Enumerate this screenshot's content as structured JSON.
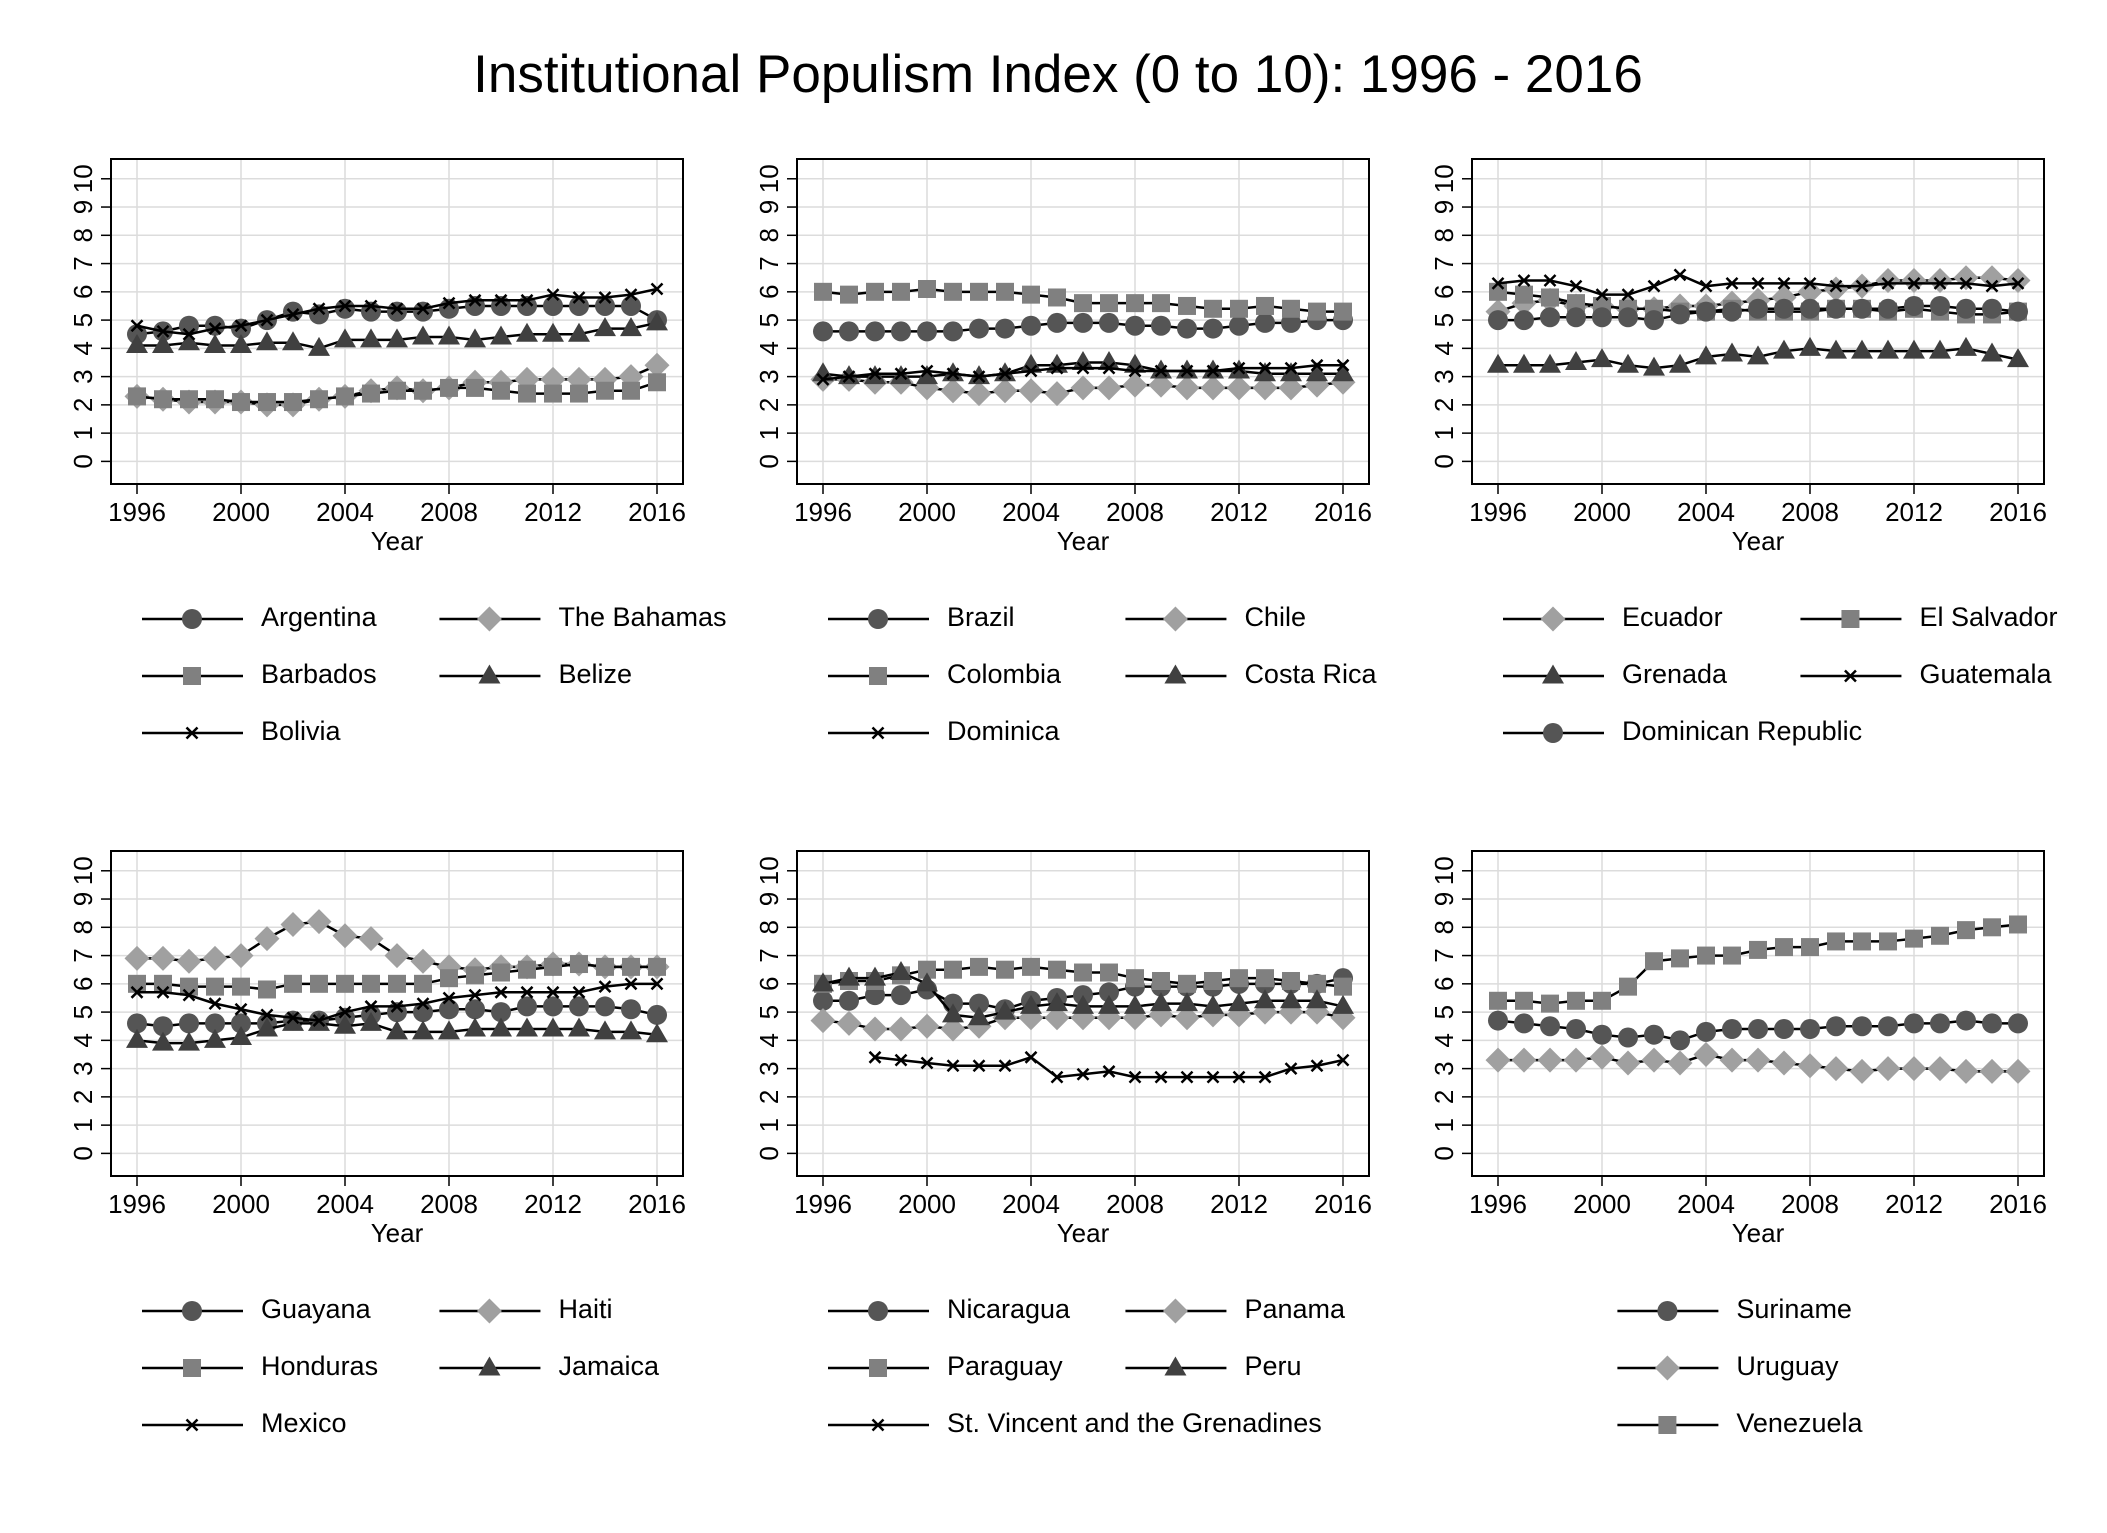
{
  "title": "Institutional Populism Index (0 to 10): 1996 - 2016",
  "chart_data": [
    {
      "type": "line",
      "x_label": "Year",
      "xlim": [
        1995,
        2017
      ],
      "ylim": [
        -0.8,
        10.7
      ],
      "xticks": [
        1996,
        2000,
        2004,
        2008,
        2012,
        2016
      ],
      "yticks": [
        0,
        1,
        2,
        3,
        4,
        5,
        6,
        7,
        8,
        9,
        10
      ],
      "grid": true,
      "line_color": "#000000",
      "legend_columns": 2,
      "x": [
        1996,
        1997,
        1998,
        1999,
        2000,
        2001,
        2002,
        2003,
        2004,
        2005,
        2006,
        2007,
        2008,
        2009,
        2010,
        2011,
        2012,
        2013,
        2014,
        2015,
        2016
      ],
      "series": [
        {
          "name": "Argentina",
          "color": "#555555",
          "marker": "circle",
          "values": [
            4.5,
            4.6,
            4.8,
            4.8,
            4.7,
            5.0,
            5.3,
            5.2,
            5.4,
            5.3,
            5.3,
            5.3,
            5.4,
            5.5,
            5.5,
            5.5,
            5.5,
            5.5,
            5.5,
            5.5,
            5.0
          ]
        },
        {
          "name": "The Bahamas",
          "color": "#a0a0a0",
          "marker": "diamond",
          "values": [
            2.3,
            2.2,
            2.1,
            2.1,
            2.1,
            2.0,
            2.0,
            2.2,
            2.3,
            2.5,
            2.6,
            2.5,
            2.6,
            2.8,
            2.8,
            2.9,
            2.9,
            2.9,
            2.9,
            3.0,
            3.4
          ]
        },
        {
          "name": "Barbados",
          "color": "#808080",
          "marker": "square",
          "values": [
            2.3,
            2.2,
            2.2,
            2.2,
            2.1,
            2.1,
            2.1,
            2.2,
            2.3,
            2.4,
            2.5,
            2.5,
            2.6,
            2.6,
            2.5,
            2.4,
            2.4,
            2.4,
            2.5,
            2.5,
            2.8
          ]
        },
        {
          "name": "Belize",
          "color": "#404040",
          "marker": "triangle",
          "values": [
            4.1,
            4.1,
            4.2,
            4.1,
            4.1,
            4.2,
            4.2,
            4.0,
            4.3,
            4.3,
            4.3,
            4.4,
            4.4,
            4.3,
            4.4,
            4.5,
            4.5,
            4.5,
            4.7,
            4.7,
            4.9
          ]
        },
        {
          "name": "Bolivia",
          "color": "#000000",
          "marker": "x",
          "values": [
            4.8,
            4.6,
            4.5,
            4.7,
            4.8,
            5.0,
            5.2,
            5.4,
            5.5,
            5.5,
            5.4,
            5.4,
            5.6,
            5.7,
            5.7,
            5.7,
            5.9,
            5.8,
            5.8,
            5.9,
            6.1
          ]
        }
      ]
    },
    {
      "type": "line",
      "x_label": "Year",
      "xlim": [
        1995,
        2017
      ],
      "ylim": [
        -0.8,
        10.7
      ],
      "xticks": [
        1996,
        2000,
        2004,
        2008,
        2012,
        2016
      ],
      "yticks": [
        0,
        1,
        2,
        3,
        4,
        5,
        6,
        7,
        8,
        9,
        10
      ],
      "grid": true,
      "line_color": "#000000",
      "legend_columns": 2,
      "x": [
        1996,
        1997,
        1998,
        1999,
        2000,
        2001,
        2002,
        2003,
        2004,
        2005,
        2006,
        2007,
        2008,
        2009,
        2010,
        2011,
        2012,
        2013,
        2014,
        2015,
        2016
      ],
      "series": [
        {
          "name": "Brazil",
          "color": "#555555",
          "marker": "circle",
          "values": [
            4.6,
            4.6,
            4.6,
            4.6,
            4.6,
            4.6,
            4.7,
            4.7,
            4.8,
            4.9,
            4.9,
            4.9,
            4.8,
            4.8,
            4.7,
            4.7,
            4.8,
            4.9,
            4.9,
            5.0,
            5.0
          ]
        },
        {
          "name": "Chile",
          "color": "#a0a0a0",
          "marker": "diamond",
          "values": [
            2.9,
            2.9,
            2.8,
            2.8,
            2.6,
            2.5,
            2.4,
            2.5,
            2.5,
            2.4,
            2.6,
            2.6,
            2.7,
            2.7,
            2.6,
            2.6,
            2.6,
            2.6,
            2.6,
            2.7,
            2.8
          ]
        },
        {
          "name": "Colombia",
          "color": "#808080",
          "marker": "square",
          "values": [
            6.0,
            5.9,
            6.0,
            6.0,
            6.1,
            6.0,
            6.0,
            6.0,
            5.9,
            5.8,
            5.6,
            5.6,
            5.6,
            5.6,
            5.5,
            5.4,
            5.4,
            5.5,
            5.4,
            5.3,
            5.3
          ]
        },
        {
          "name": "Costa Rica",
          "color": "#404040",
          "marker": "triangle",
          "values": [
            3.1,
            3.0,
            3.0,
            3.0,
            3.0,
            3.1,
            3.0,
            3.1,
            3.4,
            3.4,
            3.5,
            3.5,
            3.4,
            3.2,
            3.2,
            3.2,
            3.2,
            3.1,
            3.1,
            3.1,
            3.1
          ]
        },
        {
          "name": "Dominica",
          "color": "#000000",
          "marker": "x",
          "values": [
            2.9,
            3.0,
            3.1,
            3.1,
            3.2,
            3.1,
            3.0,
            3.1,
            3.2,
            3.3,
            3.3,
            3.3,
            3.2,
            3.2,
            3.2,
            3.2,
            3.3,
            3.3,
            3.3,
            3.4,
            3.4
          ]
        }
      ]
    },
    {
      "type": "line",
      "x_label": "Year",
      "xlim": [
        1995,
        2017
      ],
      "ylim": [
        -0.8,
        10.7
      ],
      "xticks": [
        1996,
        2000,
        2004,
        2008,
        2012,
        2016
      ],
      "yticks": [
        0,
        1,
        2,
        3,
        4,
        5,
        6,
        7,
        8,
        9,
        10
      ],
      "grid": true,
      "line_color": "#000000",
      "legend_columns": 2,
      "x": [
        1996,
        1997,
        1998,
        1999,
        2000,
        2001,
        2002,
        2003,
        2004,
        2005,
        2006,
        2007,
        2008,
        2009,
        2010,
        2011,
        2012,
        2013,
        2014,
        2015,
        2016
      ],
      "series": [
        {
          "name": "Ecuador",
          "color": "#a0a0a0",
          "marker": "diamond",
          "values": [
            5.3,
            5.6,
            5.7,
            5.5,
            5.5,
            5.4,
            5.4,
            5.5,
            5.5,
            5.6,
            5.7,
            5.8,
            6.0,
            6.1,
            6.2,
            6.4,
            6.4,
            6.4,
            6.5,
            6.5,
            6.4
          ]
        },
        {
          "name": "El Salvador",
          "color": "#808080",
          "marker": "square",
          "values": [
            6.0,
            5.9,
            5.8,
            5.6,
            5.5,
            5.4,
            5.4,
            5.3,
            5.3,
            5.4,
            5.3,
            5.3,
            5.3,
            5.4,
            5.4,
            5.3,
            5.4,
            5.3,
            5.2,
            5.2,
            5.3
          ]
        },
        {
          "name": "Grenada",
          "color": "#404040",
          "marker": "triangle",
          "values": [
            3.4,
            3.4,
            3.4,
            3.5,
            3.6,
            3.4,
            3.3,
            3.4,
            3.7,
            3.8,
            3.7,
            3.9,
            4.0,
            3.9,
            3.9,
            3.9,
            3.9,
            3.9,
            4.0,
            3.8,
            3.6
          ]
        },
        {
          "name": "Guatemala",
          "color": "#000000",
          "marker": "x",
          "values": [
            6.3,
            6.4,
            6.4,
            6.2,
            5.9,
            5.9,
            6.2,
            6.6,
            6.2,
            6.3,
            6.3,
            6.3,
            6.3,
            6.2,
            6.2,
            6.3,
            6.3,
            6.3,
            6.3,
            6.2,
            6.3
          ]
        },
        {
          "name": "Dominican Republic",
          "color": "#555555",
          "marker": "circle",
          "values": [
            5.0,
            5.0,
            5.1,
            5.1,
            5.1,
            5.1,
            5.0,
            5.2,
            5.3,
            5.3,
            5.4,
            5.4,
            5.4,
            5.4,
            5.4,
            5.4,
            5.5,
            5.5,
            5.4,
            5.4,
            5.3
          ]
        }
      ]
    },
    {
      "type": "line",
      "x_label": "Year",
      "xlim": [
        1995,
        2017
      ],
      "ylim": [
        -0.8,
        10.7
      ],
      "xticks": [
        1996,
        2000,
        2004,
        2008,
        2012,
        2016
      ],
      "yticks": [
        0,
        1,
        2,
        3,
        4,
        5,
        6,
        7,
        8,
        9,
        10
      ],
      "grid": true,
      "line_color": "#000000",
      "legend_columns": 2,
      "x": [
        1996,
        1997,
        1998,
        1999,
        2000,
        2001,
        2002,
        2003,
        2004,
        2005,
        2006,
        2007,
        2008,
        2009,
        2010,
        2011,
        2012,
        2013,
        2014,
        2015,
        2016
      ],
      "series": [
        {
          "name": "Guayana",
          "color": "#555555",
          "marker": "circle",
          "values": [
            4.6,
            4.5,
            4.6,
            4.6,
            4.6,
            4.6,
            4.7,
            4.7,
            4.8,
            4.9,
            5.0,
            5.0,
            5.1,
            5.1,
            5.0,
            5.2,
            5.2,
            5.2,
            5.2,
            5.1,
            4.9
          ]
        },
        {
          "name": "Haiti",
          "color": "#a0a0a0",
          "marker": "diamond",
          "values": [
            6.9,
            6.9,
            6.8,
            6.9,
            7.0,
            7.6,
            8.1,
            8.2,
            7.7,
            7.6,
            7.0,
            6.8,
            6.6,
            6.5,
            6.6,
            6.6,
            6.7,
            6.7,
            6.6,
            6.6,
            6.6
          ]
        },
        {
          "name": "Honduras",
          "color": "#808080",
          "marker": "square",
          "values": [
            6.0,
            6.0,
            5.9,
            5.9,
            5.9,
            5.8,
            6.0,
            6.0,
            6.0,
            6.0,
            6.0,
            6.0,
            6.2,
            6.3,
            6.4,
            6.5,
            6.6,
            6.7,
            6.6,
            6.6,
            6.6
          ]
        },
        {
          "name": "Jamaica",
          "color": "#404040",
          "marker": "triangle",
          "values": [
            4.0,
            3.9,
            3.9,
            4.0,
            4.1,
            4.4,
            4.6,
            4.6,
            4.5,
            4.6,
            4.3,
            4.3,
            4.3,
            4.4,
            4.4,
            4.4,
            4.4,
            4.4,
            4.3,
            4.3,
            4.2
          ]
        },
        {
          "name": "Mexico",
          "color": "#000000",
          "marker": "x",
          "values": [
            5.7,
            5.7,
            5.6,
            5.3,
            5.1,
            4.9,
            4.8,
            4.7,
            5.0,
            5.2,
            5.2,
            5.3,
            5.5,
            5.6,
            5.7,
            5.7,
            5.7,
            5.7,
            5.9,
            6.0,
            6.0
          ]
        }
      ]
    },
    {
      "type": "line",
      "x_label": "Year",
      "xlim": [
        1995,
        2017
      ],
      "ylim": [
        -0.8,
        10.7
      ],
      "xticks": [
        1996,
        2000,
        2004,
        2008,
        2012,
        2016
      ],
      "yticks": [
        0,
        1,
        2,
        3,
        4,
        5,
        6,
        7,
        8,
        9,
        10
      ],
      "grid": true,
      "line_color": "#000000",
      "legend_columns": 2,
      "x": [
        1996,
        1997,
        1998,
        1999,
        2000,
        2001,
        2002,
        2003,
        2004,
        2005,
        2006,
        2007,
        2008,
        2009,
        2010,
        2011,
        2012,
        2013,
        2014,
        2015,
        2016
      ],
      "series": [
        {
          "name": "Nicaragua",
          "color": "#555555",
          "marker": "circle",
          "values": [
            5.4,
            5.4,
            5.6,
            5.6,
            5.8,
            5.3,
            5.3,
            5.1,
            5.4,
            5.5,
            5.6,
            5.7,
            5.9,
            5.9,
            5.9,
            5.9,
            6.0,
            6.0,
            6.0,
            6.0,
            6.2
          ]
        },
        {
          "name": "Panama",
          "color": "#a0a0a0",
          "marker": "diamond",
          "values": [
            4.7,
            4.6,
            4.4,
            4.4,
            4.5,
            4.4,
            4.5,
            4.8,
            4.8,
            4.8,
            4.8,
            4.8,
            4.8,
            4.9,
            4.8,
            4.9,
            4.9,
            5.0,
            5.0,
            5.0,
            4.8
          ]
        },
        {
          "name": "Paraguay",
          "color": "#808080",
          "marker": "square",
          "values": [
            6.0,
            6.1,
            6.1,
            6.3,
            6.5,
            6.5,
            6.6,
            6.5,
            6.6,
            6.5,
            6.4,
            6.4,
            6.2,
            6.1,
            6.0,
            6.1,
            6.2,
            6.2,
            6.1,
            6.0,
            5.9
          ]
        },
        {
          "name": "Peru",
          "color": "#404040",
          "marker": "triangle",
          "values": [
            6.0,
            6.2,
            6.2,
            6.4,
            6.0,
            4.9,
            4.8,
            5.0,
            5.2,
            5.3,
            5.2,
            5.2,
            5.2,
            5.3,
            5.3,
            5.2,
            5.3,
            5.4,
            5.4,
            5.4,
            5.2
          ]
        },
        {
          "name": "St. Vincent and the Grenadines",
          "color": "#000000",
          "marker": "x",
          "values": [
            null,
            null,
            3.4,
            3.3,
            3.2,
            3.1,
            3.1,
            3.1,
            3.4,
            2.7,
            2.8,
            2.9,
            2.7,
            2.7,
            2.7,
            2.7,
            2.7,
            2.7,
            3.0,
            3.1,
            3.3
          ]
        }
      ]
    },
    {
      "type": "line",
      "x_label": "Year",
      "xlim": [
        1995,
        2017
      ],
      "ylim": [
        -0.8,
        10.7
      ],
      "xticks": [
        1996,
        2000,
        2004,
        2008,
        2012,
        2016
      ],
      "yticks": [
        0,
        1,
        2,
        3,
        4,
        5,
        6,
        7,
        8,
        9,
        10
      ],
      "grid": true,
      "line_color": "#000000",
      "legend_columns": 1,
      "x": [
        1996,
        1997,
        1998,
        1999,
        2000,
        2001,
        2002,
        2003,
        2004,
        2005,
        2006,
        2007,
        2008,
        2009,
        2010,
        2011,
        2012,
        2013,
        2014,
        2015,
        2016
      ],
      "series": [
        {
          "name": "Suriname",
          "color": "#555555",
          "marker": "circle",
          "values": [
            4.7,
            4.6,
            4.5,
            4.4,
            4.2,
            4.1,
            4.2,
            4.0,
            4.3,
            4.4,
            4.4,
            4.4,
            4.4,
            4.5,
            4.5,
            4.5,
            4.6,
            4.6,
            4.7,
            4.6,
            4.6
          ]
        },
        {
          "name": "Uruguay",
          "color": "#a0a0a0",
          "marker": "diamond",
          "values": [
            3.3,
            3.3,
            3.3,
            3.3,
            3.4,
            3.2,
            3.3,
            3.2,
            3.5,
            3.3,
            3.3,
            3.2,
            3.1,
            3.0,
            2.9,
            3.0,
            3.0,
            3.0,
            2.9,
            2.9,
            2.9
          ]
        },
        {
          "name": "Venezuela",
          "color": "#808080",
          "marker": "square",
          "values": [
            5.4,
            5.4,
            5.3,
            5.4,
            5.4,
            5.9,
            6.8,
            6.9,
            7.0,
            7.0,
            7.2,
            7.3,
            7.3,
            7.5,
            7.5,
            7.5,
            7.6,
            7.7,
            7.9,
            8.0,
            8.1
          ]
        }
      ]
    }
  ]
}
